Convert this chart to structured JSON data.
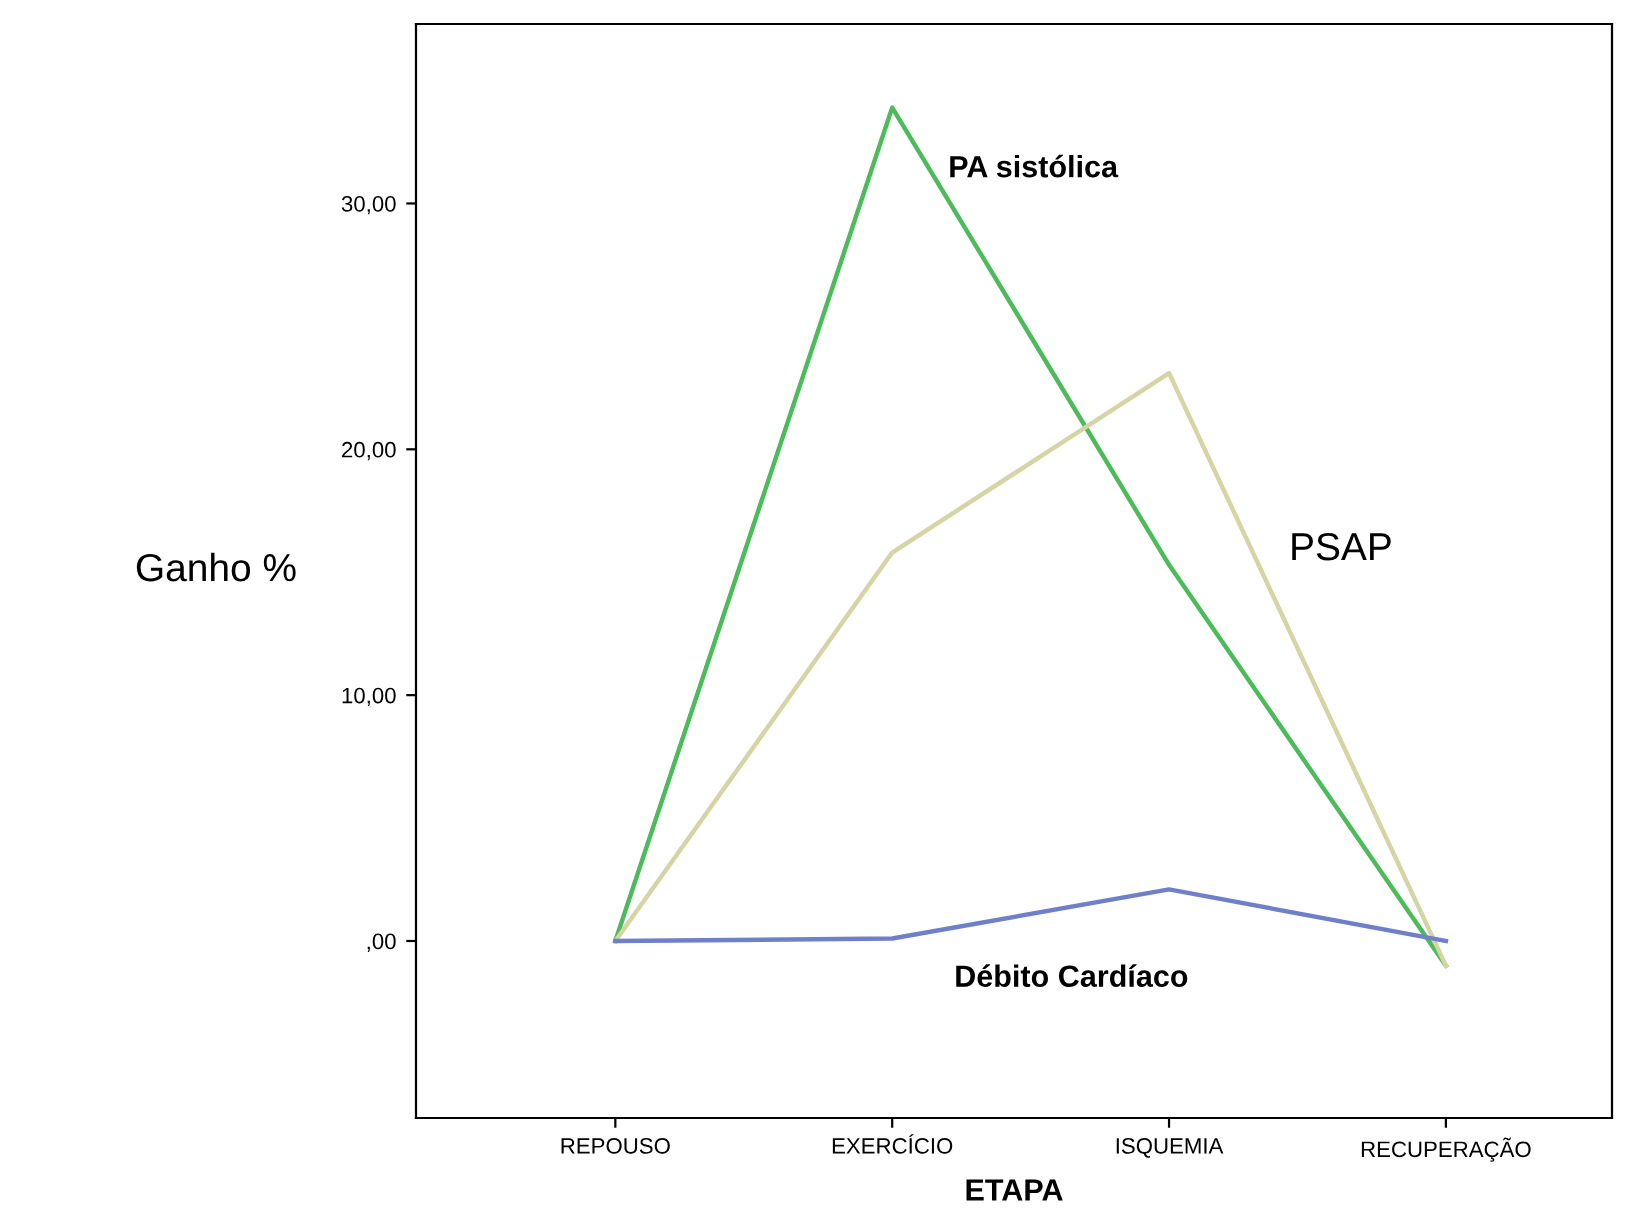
{
  "chart_data": {
    "type": "line",
    "xlabel": "ETAPA",
    "ylabel": "Ganho %",
    "categories": [
      "REPOUSO",
      "EXERCÍCIO",
      "ISQUEMIA",
      "RECUPERAÇÃO"
    ],
    "series": [
      {
        "name": "PA sistólica",
        "color": "#4cbb5a",
        "values": [
          0,
          33.9,
          15.3,
          -1.0
        ]
      },
      {
        "name": "PSAP",
        "color": "#d4d4a4",
        "values": [
          0,
          15.8,
          23.1,
          -1.0
        ]
      },
      {
        "name": "Débito Cardíaco",
        "color": "#7080c8",
        "values": [
          0,
          0.1,
          2.1,
          0
        ]
      }
    ],
    "ylim": [
      -7.2,
      37.3
    ],
    "yticks": [
      {
        "value": 0,
        "label": ",00"
      },
      {
        "value": 10,
        "label": "10,00"
      },
      {
        "value": 20,
        "label": "20,00"
      },
      {
        "value": 30,
        "label": "30,00"
      }
    ],
    "grid": false,
    "legend": false,
    "marker": "none",
    "line_style": "solid"
  }
}
